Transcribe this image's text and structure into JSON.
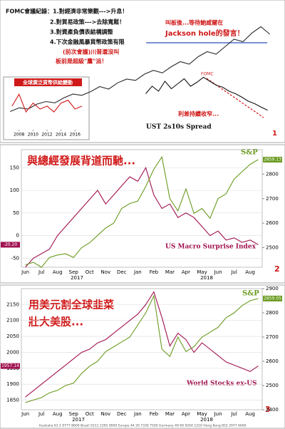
{
  "chart_data": [
    {
      "type": "line",
      "panel_number": "1",
      "annotations": [
        "FOMC會議紀錄：1.對經濟非常樂觀--->升息！",
        "2.對貿易政策--->去除寬鬆！",
        "3.對資產負債表結構調整",
        "4.下次金融風暴貨幣政策有限",
        "(前次會議)川普還沒叫",
        "板前是超級\"鷹\"派！",
        "叫板後...等待鮑威爾在",
        "Jackson hole的發言！"
      ],
      "ylim": [
        0,
        100
      ],
      "series": [
        {
          "color": "#2a2a2a",
          "values": [
            22,
            25,
            24,
            28,
            30,
            29,
            33,
            36,
            35,
            38,
            42,
            40,
            45,
            48,
            47,
            52,
            55,
            53,
            58,
            62,
            60,
            66,
            70,
            68,
            74,
            80,
            78,
            85,
            90,
            84
          ]
        }
      ]
    },
    {
      "type": "line",
      "title": "全球廣泛貨幣供給變動",
      "x": [
        2007,
        2008,
        2009,
        2010,
        2011,
        2012,
        2013,
        2014,
        2015,
        2016,
        2017
      ],
      "xlim": [
        2006.5,
        2017.5
      ],
      "xticks": [
        2008,
        2010,
        2012,
        2014,
        2016
      ],
      "ylim": [
        0,
        14
      ],
      "series": [
        {
          "color": "#d01818",
          "values": [
            8,
            12,
            6,
            9,
            7,
            8,
            6,
            9,
            10,
            7,
            8
          ]
        }
      ]
    },
    {
      "type": "line",
      "title": "UST 2s10s Spread",
      "annotations": [
        "FOMC",
        "利差持續收窄..."
      ],
      "ylim": [
        0,
        100
      ],
      "series": [
        {
          "color": "#111111",
          "values": [
            55,
            70,
            60,
            80,
            65,
            75,
            85,
            70,
            78,
            88,
            80,
            72,
            68,
            60,
            55,
            48,
            40,
            35,
            28,
            22
          ]
        }
      ]
    },
    {
      "type": "line",
      "title": "與總經發展背道而馳...",
      "panel_number": "2",
      "years": [
        "2017",
        "2018"
      ],
      "categories": [
        "Jun",
        null,
        "Jul",
        null,
        "Aug",
        null,
        "Sep",
        null,
        "Oct",
        null,
        "Nov",
        null,
        "Dec",
        null,
        "Jan",
        null,
        "Feb",
        null,
        "Mar",
        null,
        "Apr",
        null,
        "May",
        null,
        "Jun",
        null,
        "Jul",
        null,
        "Aug",
        null
      ],
      "ylim": [
        -70,
        190
      ],
      "yticks": [
        -50,
        0,
        50,
        100,
        150
      ],
      "y2lim": [
        2420,
        2900
      ],
      "y2ticks": [
        2500,
        2600,
        2700,
        2800
      ],
      "series": [
        {
          "name": "US Macro Surprise Index",
          "color": "#a0114f",
          "values": [
            -70,
            -50,
            -40,
            -30,
            0,
            20,
            40,
            60,
            80,
            100,
            70,
            90,
            110,
            130,
            120,
            150,
            90,
            60,
            70,
            40,
            50,
            40,
            20,
            0,
            10,
            -10,
            -5,
            -15,
            -10,
            -20.2
          ],
          "value_labels": [
            null,
            null,
            null,
            null,
            null,
            null,
            null,
            null,
            null,
            null,
            null,
            null,
            null,
            null,
            null,
            null,
            null,
            null,
            null,
            null,
            null,
            null,
            null,
            null,
            null,
            null,
            null,
            null,
            null,
            "-20.20"
          ]
        },
        {
          "name": "S&P",
          "axis": "y2",
          "color": "#6a9a1f",
          "values": [
            2430,
            2440,
            2420,
            2460,
            2470,
            2475,
            2460,
            2500,
            2520,
            2550,
            2580,
            2600,
            2660,
            2680,
            2690,
            2750,
            2820,
            2870,
            2700,
            2650,
            2740,
            2640,
            2660,
            2620,
            2700,
            2720,
            2780,
            2810,
            2840,
            2859.13
          ]
        }
      ]
    },
    {
      "type": "line",
      "title": "用美元割全球韭菜",
      "subtitle": "壯大美股...",
      "panel_number": "3",
      "years": [
        "2017",
        "2018"
      ],
      "footer": "Australia 61 2 9777 8600 Brazil 5511 2395 9000 Europe 44 20 7330 7500 Germany 49 69 9204 1210 Hong Kong 852 2977 6000",
      "categories": [
        "Jun",
        null,
        "Jul",
        null,
        "Aug",
        null,
        "Sep",
        null,
        "Oct",
        null,
        "Nov",
        null,
        "Dec",
        null,
        "Jan",
        null,
        "Feb",
        null,
        "Mar",
        null,
        "Apr",
        null,
        "May",
        null,
        "Jun",
        null,
        "Jul",
        null,
        "Aug",
        null
      ],
      "ylim": [
        1820,
        2200
      ],
      "yticks": [
        1850,
        1900,
        1950,
        2000,
        2050,
        2100,
        2150
      ],
      "y2lim": [
        2400,
        2900
      ],
      "y2ticks": [
        2400,
        2500,
        2600,
        2700,
        2800,
        2900
      ],
      "series": [
        {
          "name": "World Stocks ex-US",
          "color": "#a0114f",
          "values": [
            1860,
            1880,
            1900,
            1920,
            1940,
            1960,
            1980,
            2000,
            2010,
            2030,
            2040,
            2060,
            2080,
            2100,
            2120,
            2150,
            2190,
            2110,
            2020,
            2060,
            2040,
            2000,
            2030,
            2010,
            1990,
            1970,
            1960,
            1950,
            1940,
            1957.14
          ]
        },
        {
          "name": "S&P",
          "axis": "y2",
          "color": "#6a9a1f",
          "values": [
            2430,
            2440,
            2450,
            2470,
            2480,
            2500,
            2510,
            2550,
            2580,
            2600,
            2640,
            2660,
            2680,
            2700,
            2750,
            2800,
            2870,
            2650,
            2620,
            2700,
            2640,
            2660,
            2700,
            2720,
            2740,
            2780,
            2800,
            2830,
            2850,
            2859.05
          ]
        }
      ]
    }
  ]
}
